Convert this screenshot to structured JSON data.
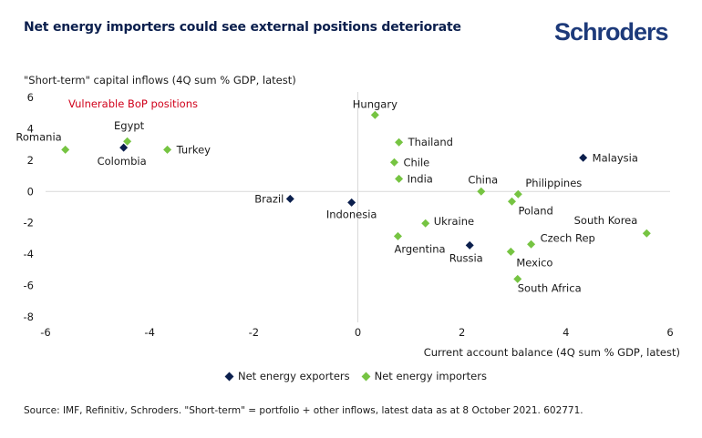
{
  "header": {
    "title": "Net energy importers could see external positions deteriorate",
    "brand": "Schroders"
  },
  "colors": {
    "exporter": "#0b1f4d",
    "importer": "#76c442",
    "annotation": "#d0021b",
    "brand": "#1d3a7a",
    "axis": "#d9d9d9"
  },
  "chart_data": {
    "type": "scatter",
    "title": "Net energy importers could see external positions deteriorate",
    "xlabel": "Current account balance (4Q sum % GDP, latest)",
    "ylabel": "\"Short-term\" capital inflows (4Q sum % GDP, latest)",
    "xlim": [
      -6,
      6
    ],
    "ylim": [
      -8,
      6
    ],
    "xticks": [
      -6,
      -4,
      -2,
      0,
      2,
      4,
      6
    ],
    "yticks": [
      6,
      4,
      2,
      0,
      -2,
      -4,
      -6,
      -8
    ],
    "xtick_labels": [
      "-6",
      "-4",
      "-2",
      "0",
      "2",
      "4",
      "6"
    ],
    "ytick_labels": [
      "6",
      "4",
      "2",
      "0",
      "-2",
      "-4",
      "-6",
      "-8"
    ],
    "grid": false,
    "legend_position": "bottom-center",
    "annotation": "Vulnerable BoP positions",
    "series": [
      {
        "name": "Net energy exporters",
        "color": "#0b1f4d",
        "points": [
          {
            "label": "Colombia",
            "x": -4.5,
            "y": 2.8
          },
          {
            "label": "Brazil",
            "x": -1.3,
            "y": -0.47
          },
          {
            "label": "Indonesia",
            "x": -0.12,
            "y": -0.7
          },
          {
            "label": "Russia",
            "x": 2.15,
            "y": -3.43
          },
          {
            "label": "Malaysia",
            "x": 4.33,
            "y": 2.15
          }
        ]
      },
      {
        "name": "Net energy importers",
        "color": "#76c442",
        "points": [
          {
            "label": "Romania",
            "x": -5.62,
            "y": 2.67
          },
          {
            "label": "Egypt",
            "x": -4.43,
            "y": 3.2
          },
          {
            "label": "Turkey",
            "x": -3.66,
            "y": 2.67
          },
          {
            "label": "Hungary",
            "x": 0.33,
            "y": 4.88
          },
          {
            "label": "Thailand",
            "x": 0.79,
            "y": 3.14
          },
          {
            "label": "Chile",
            "x": 0.7,
            "y": 1.86
          },
          {
            "label": "India",
            "x": 0.79,
            "y": 0.81
          },
          {
            "label": "China",
            "x": 2.37,
            "y": 0.0
          },
          {
            "label": "Philippines",
            "x": 3.08,
            "y": -0.17
          },
          {
            "label": "Poland",
            "x": 2.96,
            "y": -0.64
          },
          {
            "label": "Ukraine",
            "x": 1.3,
            "y": -2.03
          },
          {
            "label": "Argentina",
            "x": 0.77,
            "y": -2.85
          },
          {
            "label": "Czech Rep",
            "x": 3.33,
            "y": -3.37
          },
          {
            "label": "Mexico",
            "x": 2.94,
            "y": -3.84
          },
          {
            "label": "South Africa",
            "x": 3.07,
            "y": -5.58
          },
          {
            "label": "South Korea",
            "x": 5.55,
            "y": -2.67
          }
        ]
      }
    ]
  },
  "legend": {
    "exporters": "Net energy exporters",
    "importers": "Net energy importers"
  },
  "footer": {
    "source": "Source: IMF, Refinitiv, Schroders. \"Short-term\" = portfolio + other inflows, latest data as at 8 October 2021. 602771."
  }
}
